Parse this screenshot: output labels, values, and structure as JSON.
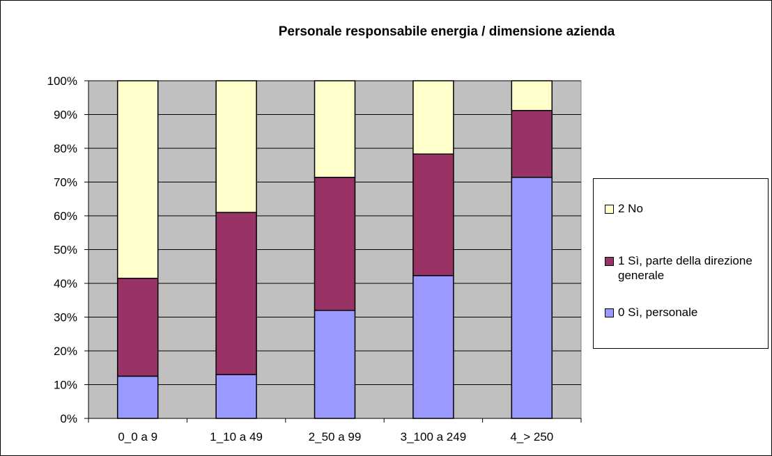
{
  "chart_data": {
    "type": "bar",
    "stacked": true,
    "percent": true,
    "title": "Personale responsabile energia / dimensione azienda",
    "categories": [
      "0_0 a 9",
      "1_10 a 49",
      "2_50 a 99",
      "3_100 a 249",
      "4_> 250"
    ],
    "series": [
      {
        "name": "0 Sì, personale",
        "color": "#9999ff",
        "values": [
          12.5,
          13,
          32,
          42.3,
          71.4
        ]
      },
      {
        "name": "1 Sì, parte della direzione generale",
        "color": "#993366",
        "values": [
          29,
          48,
          39.4,
          36,
          19.8
        ]
      },
      {
        "name": "2 No",
        "color": "#ffffcc",
        "values": [
          58.5,
          39,
          28.6,
          21.7,
          8.8
        ]
      }
    ],
    "ylim": [
      0,
      100
    ],
    "yticks": [
      "0%",
      "10%",
      "20%",
      "30%",
      "40%",
      "50%",
      "60%",
      "70%",
      "80%",
      "90%",
      "100%"
    ],
    "plot_background": "#c0c0c0",
    "grid": true,
    "legend_position": "right",
    "legend_order": [
      "2 No",
      "1 Sì, parte della direzione generale",
      "0 Sì, personale"
    ]
  }
}
